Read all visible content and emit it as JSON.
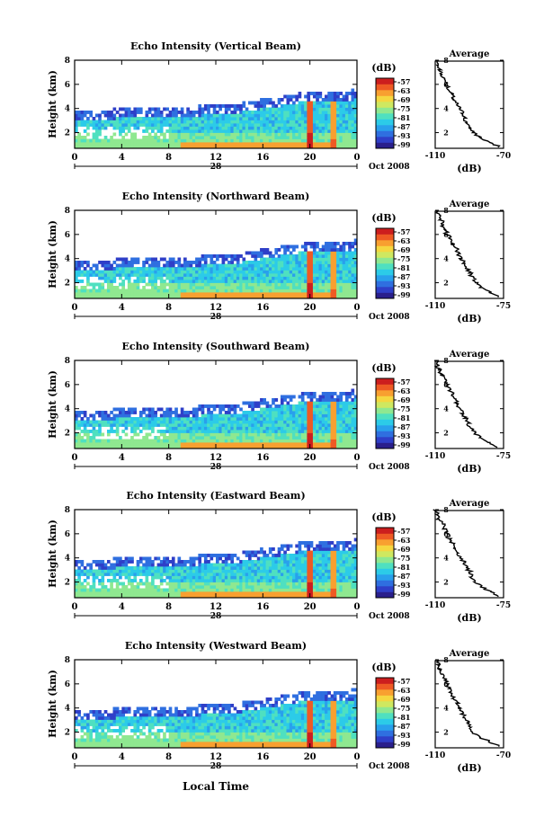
{
  "figure": {
    "x_axis_title": "Local Time",
    "colorbar_unit": "(dB)",
    "colorbar_ticks": [
      "-57",
      "-63",
      "-69",
      "-75",
      "-81",
      "-87",
      "-93",
      "-99"
    ],
    "colormap": [
      "#2a1f8c",
      "#2f3fc8",
      "#2f6fe0",
      "#29a0ec",
      "#2ccbe8",
      "#4fe0c0",
      "#8fe890",
      "#cfe860",
      "#f5d740",
      "#f8a030",
      "#ee5a24",
      "#cc1e1e"
    ],
    "date_day": "28",
    "date_label": "Oct 2008",
    "avg_title": "Average",
    "avg_xlabel": "(dB)"
  },
  "chart_data": [
    {
      "type": "heatmap",
      "title": "Echo Intensity (Vertical Beam)",
      "ylabel": "Height (km)",
      "x_ticks": [
        "0",
        "4",
        "8",
        "12",
        "16",
        "20",
        "0"
      ],
      "y_ticks": [
        "2",
        "4",
        "6",
        "8"
      ],
      "xlim": [
        0,
        24
      ],
      "ylim": [
        0.7,
        8
      ],
      "profile": {
        "title": "Average",
        "xlabel": "(dB)",
        "x_ticks": [
          "-110",
          "-70"
        ],
        "xlim": [
          -110,
          -70
        ],
        "y_ticks": [
          "2",
          "4",
          "6",
          "8"
        ],
        "heights": [
          0.8,
          1.2,
          1.6,
          2.0,
          2.4,
          2.8,
          3.2,
          3.6,
          4.0,
          4.4,
          4.8,
          5.2,
          5.6,
          6.0,
          6.4,
          6.8,
          7.2,
          7.6,
          8.0
        ],
        "values": [
          -72,
          -78,
          -84,
          -88,
          -90,
          -91,
          -93,
          -94,
          -96,
          -97,
          -99,
          -100,
          -102,
          -103,
          -104,
          -106,
          -107,
          -108,
          -109
        ]
      }
    },
    {
      "type": "heatmap",
      "title": "Echo Intensity (Northward Beam)",
      "ylabel": "Height (km)",
      "x_ticks": [
        "0",
        "4",
        "8",
        "12",
        "16",
        "20",
        "0"
      ],
      "y_ticks": [
        "2",
        "4",
        "6",
        "8"
      ],
      "xlim": [
        0,
        24
      ],
      "ylim": [
        0.7,
        8
      ],
      "profile": {
        "title": "Average",
        "xlabel": "(dB)",
        "x_ticks": [
          "-110",
          "-75"
        ],
        "xlim": [
          -110,
          -75
        ],
        "y_ticks": [
          "2",
          "4",
          "6",
          "8"
        ],
        "heights": [
          0.8,
          1.2,
          1.6,
          2.0,
          2.4,
          2.8,
          3.2,
          3.6,
          4.0,
          4.4,
          4.8,
          5.2,
          5.6,
          6.0,
          6.4,
          6.8,
          7.2,
          7.6,
          8.0
        ],
        "values": [
          -77,
          -82,
          -86,
          -89,
          -91,
          -92,
          -94,
          -95,
          -97,
          -98,
          -99,
          -101,
          -102,
          -104,
          -105,
          -106,
          -107,
          -108,
          -109
        ]
      }
    },
    {
      "type": "heatmap",
      "title": "Echo Intensity (Southward Beam)",
      "ylabel": "Height (km)",
      "x_ticks": [
        "0",
        "4",
        "8",
        "12",
        "16",
        "20",
        "0"
      ],
      "y_ticks": [
        "2",
        "4",
        "6",
        "8"
      ],
      "xlim": [
        0,
        24
      ],
      "ylim": [
        0.7,
        8
      ],
      "profile": {
        "title": "Average",
        "xlabel": "(dB)",
        "x_ticks": [
          "-110",
          "-75"
        ],
        "xlim": [
          -110,
          -75
        ],
        "y_ticks": [
          "2",
          "4",
          "6",
          "8"
        ],
        "heights": [
          0.8,
          1.2,
          1.6,
          2.0,
          2.4,
          2.8,
          3.2,
          3.6,
          4.0,
          4.4,
          4.8,
          5.2,
          5.6,
          6.0,
          6.4,
          6.8,
          7.2,
          7.6,
          8.0
        ],
        "values": [
          -77,
          -83,
          -87,
          -90,
          -92,
          -93,
          -94,
          -96,
          -97,
          -99,
          -100,
          -101,
          -103,
          -104,
          -105,
          -107,
          -108,
          -109,
          -110
        ]
      }
    },
    {
      "type": "heatmap",
      "title": "Echo Intensity (Eastward Beam)",
      "ylabel": "Height (km)",
      "x_ticks": [
        "0",
        "4",
        "8",
        "12",
        "16",
        "20",
        "0"
      ],
      "y_ticks": [
        "2",
        "4",
        "6",
        "8"
      ],
      "xlim": [
        0,
        24
      ],
      "ylim": [
        0.7,
        8
      ],
      "profile": {
        "title": "Average",
        "xlabel": "(dB)",
        "x_ticks": [
          "-110",
          "-75"
        ],
        "xlim": [
          -110,
          -75
        ],
        "y_ticks": [
          "2",
          "4",
          "6",
          "8"
        ],
        "heights": [
          0.8,
          1.2,
          1.6,
          2.0,
          2.4,
          2.8,
          3.2,
          3.6,
          4.0,
          4.4,
          4.8,
          5.2,
          5.6,
          6.0,
          6.4,
          6.8,
          7.2,
          7.6,
          8.0
        ],
        "values": [
          -77,
          -82,
          -86,
          -89,
          -91,
          -92,
          -94,
          -95,
          -97,
          -98,
          -100,
          -101,
          -103,
          -104,
          -105,
          -106,
          -108,
          -109,
          -110
        ]
      }
    },
    {
      "type": "heatmap",
      "title": "Echo Intensity (Westward Beam)",
      "ylabel": "Height (km)",
      "x_ticks": [
        "0",
        "4",
        "8",
        "12",
        "16",
        "20",
        "0"
      ],
      "y_ticks": [
        "2",
        "4",
        "6",
        "8"
      ],
      "xlim": [
        0,
        24
      ],
      "ylim": [
        0.7,
        8
      ],
      "profile": {
        "title": "Average",
        "xlabel": "(dB)",
        "x_ticks": [
          "-110",
          "-70"
        ],
        "xlim": [
          -110,
          -70
        ],
        "y_ticks": [
          "2",
          "4",
          "6",
          "8"
        ],
        "heights": [
          0.8,
          1.2,
          1.6,
          2.0,
          2.4,
          2.8,
          3.2,
          3.6,
          4.0,
          4.4,
          4.8,
          5.2,
          5.6,
          6.0,
          6.4,
          6.8,
          7.2,
          7.6,
          8.0
        ],
        "values": [
          -72,
          -78,
          -84,
          -88,
          -90,
          -91,
          -93,
          -94,
          -96,
          -97,
          -99,
          -100,
          -102,
          -103,
          -104,
          -106,
          -107,
          -108,
          -109
        ]
      }
    }
  ]
}
